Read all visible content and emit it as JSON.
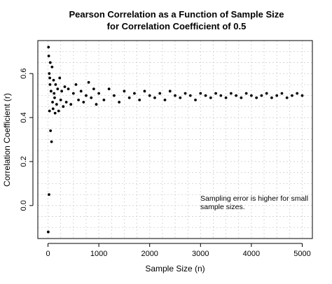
{
  "chart_data": {
    "type": "scatter",
    "title": [
      "Pearson Correlation as a Function of Sample Size",
      "for Correlation Coefficient of 0.5"
    ],
    "xlabel": "Sample Size (n)",
    "ylabel": "Correlation Coefficient (r)",
    "xlim": [
      -200,
      5200
    ],
    "ylim": [
      -0.15,
      0.75
    ],
    "xticks": [
      0,
      1000,
      2000,
      3000,
      4000,
      5000
    ],
    "yticks": [
      0.0,
      0.2,
      0.4,
      0.6
    ],
    "ytick_labels": [
      "0.0",
      "0.2",
      "0.4",
      "0.6"
    ],
    "grid": true,
    "annotation": [
      "Sampling error is higher for small",
      "sample sizes."
    ],
    "series": [
      {
        "x": [
          5,
          10,
          15,
          20,
          25,
          30,
          35,
          40,
          45,
          50,
          60,
          70,
          80,
          90,
          100,
          110,
          120,
          130,
          140,
          150,
          170,
          190,
          210,
          230,
          250,
          270,
          300,
          330,
          360,
          400,
          450,
          500,
          550,
          600,
          650,
          700,
          750,
          800,
          850,
          900,
          950,
          1000,
          1100,
          1200,
          1300,
          1400,
          1500,
          1600,
          1700,
          1800,
          1900,
          2000,
          2100,
          2200,
          2300,
          2400,
          2500,
          2600,
          2700,
          2800,
          2900,
          3000,
          3100,
          3200,
          3300,
          3400,
          3500,
          3600,
          3700,
          3800,
          3900,
          4000,
          4100,
          4200,
          4300,
          4400,
          4500,
          4600,
          4700,
          4800,
          4900,
          5000
        ],
        "y": [
          -0.12,
          0.72,
          0.68,
          0.05,
          0.6,
          0.43,
          0.58,
          0.55,
          0.65,
          0.34,
          0.52,
          0.29,
          0.63,
          0.47,
          0.44,
          0.57,
          0.51,
          0.49,
          0.42,
          0.55,
          0.46,
          0.53,
          0.43,
          0.58,
          0.48,
          0.52,
          0.45,
          0.54,
          0.47,
          0.53,
          0.46,
          0.51,
          0.55,
          0.48,
          0.52,
          0.47,
          0.5,
          0.56,
          0.49,
          0.53,
          0.46,
          0.51,
          0.48,
          0.53,
          0.5,
          0.47,
          0.52,
          0.49,
          0.51,
          0.48,
          0.52,
          0.5,
          0.49,
          0.51,
          0.48,
          0.52,
          0.5,
          0.49,
          0.51,
          0.5,
          0.48,
          0.51,
          0.5,
          0.49,
          0.51,
          0.5,
          0.49,
          0.51,
          0.5,
          0.49,
          0.51,
          0.5,
          0.49,
          0.5,
          0.51,
          0.49,
          0.5,
          0.51,
          0.49,
          0.5,
          0.51,
          0.5
        ]
      }
    ]
  }
}
